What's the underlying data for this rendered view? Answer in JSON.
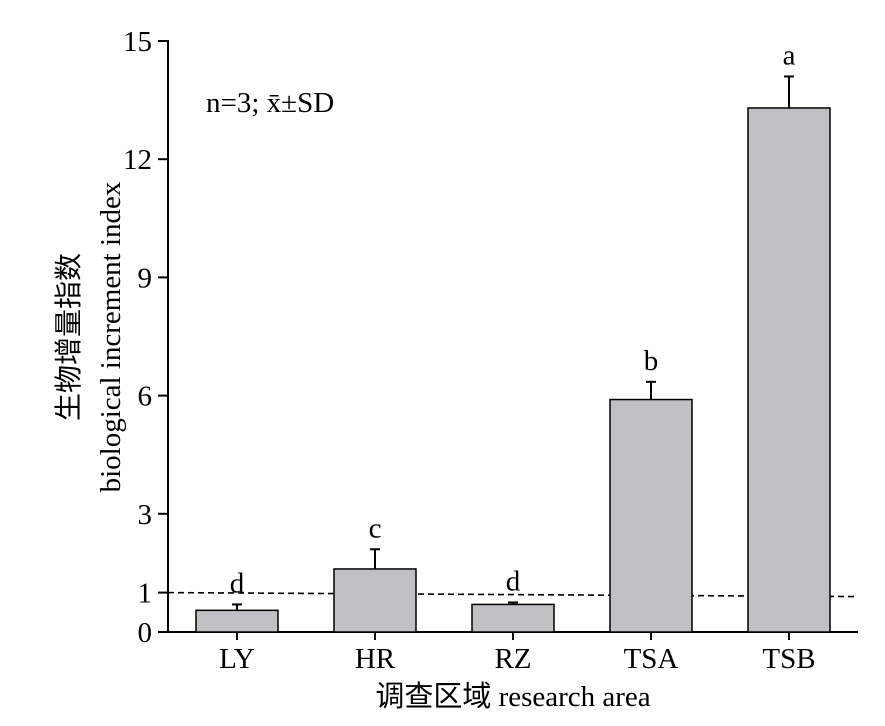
{
  "chart_data": {
    "type": "bar",
    "categories": [
      "LY",
      "HR",
      "RZ",
      "TSA",
      "TSB"
    ],
    "values": [
      0.55,
      1.6,
      0.7,
      5.9,
      13.3
    ],
    "errors": [
      0.15,
      0.5,
      0.05,
      0.45,
      0.8
    ],
    "letters": [
      "d",
      "c",
      "d",
      "b",
      "a"
    ],
    "ylabel_cn": "生物增量指数",
    "ylabel_en": "biological increment index",
    "xlabel": "调查区域 research area",
    "annotation": "n=3; x̄±SD",
    "ylim": [
      0,
      15
    ],
    "yticks": [
      0,
      1,
      3,
      6,
      9,
      12,
      15
    ],
    "reference_line": 1,
    "bar_color": "#c0bfc3",
    "legend": "none",
    "grid": false
  }
}
